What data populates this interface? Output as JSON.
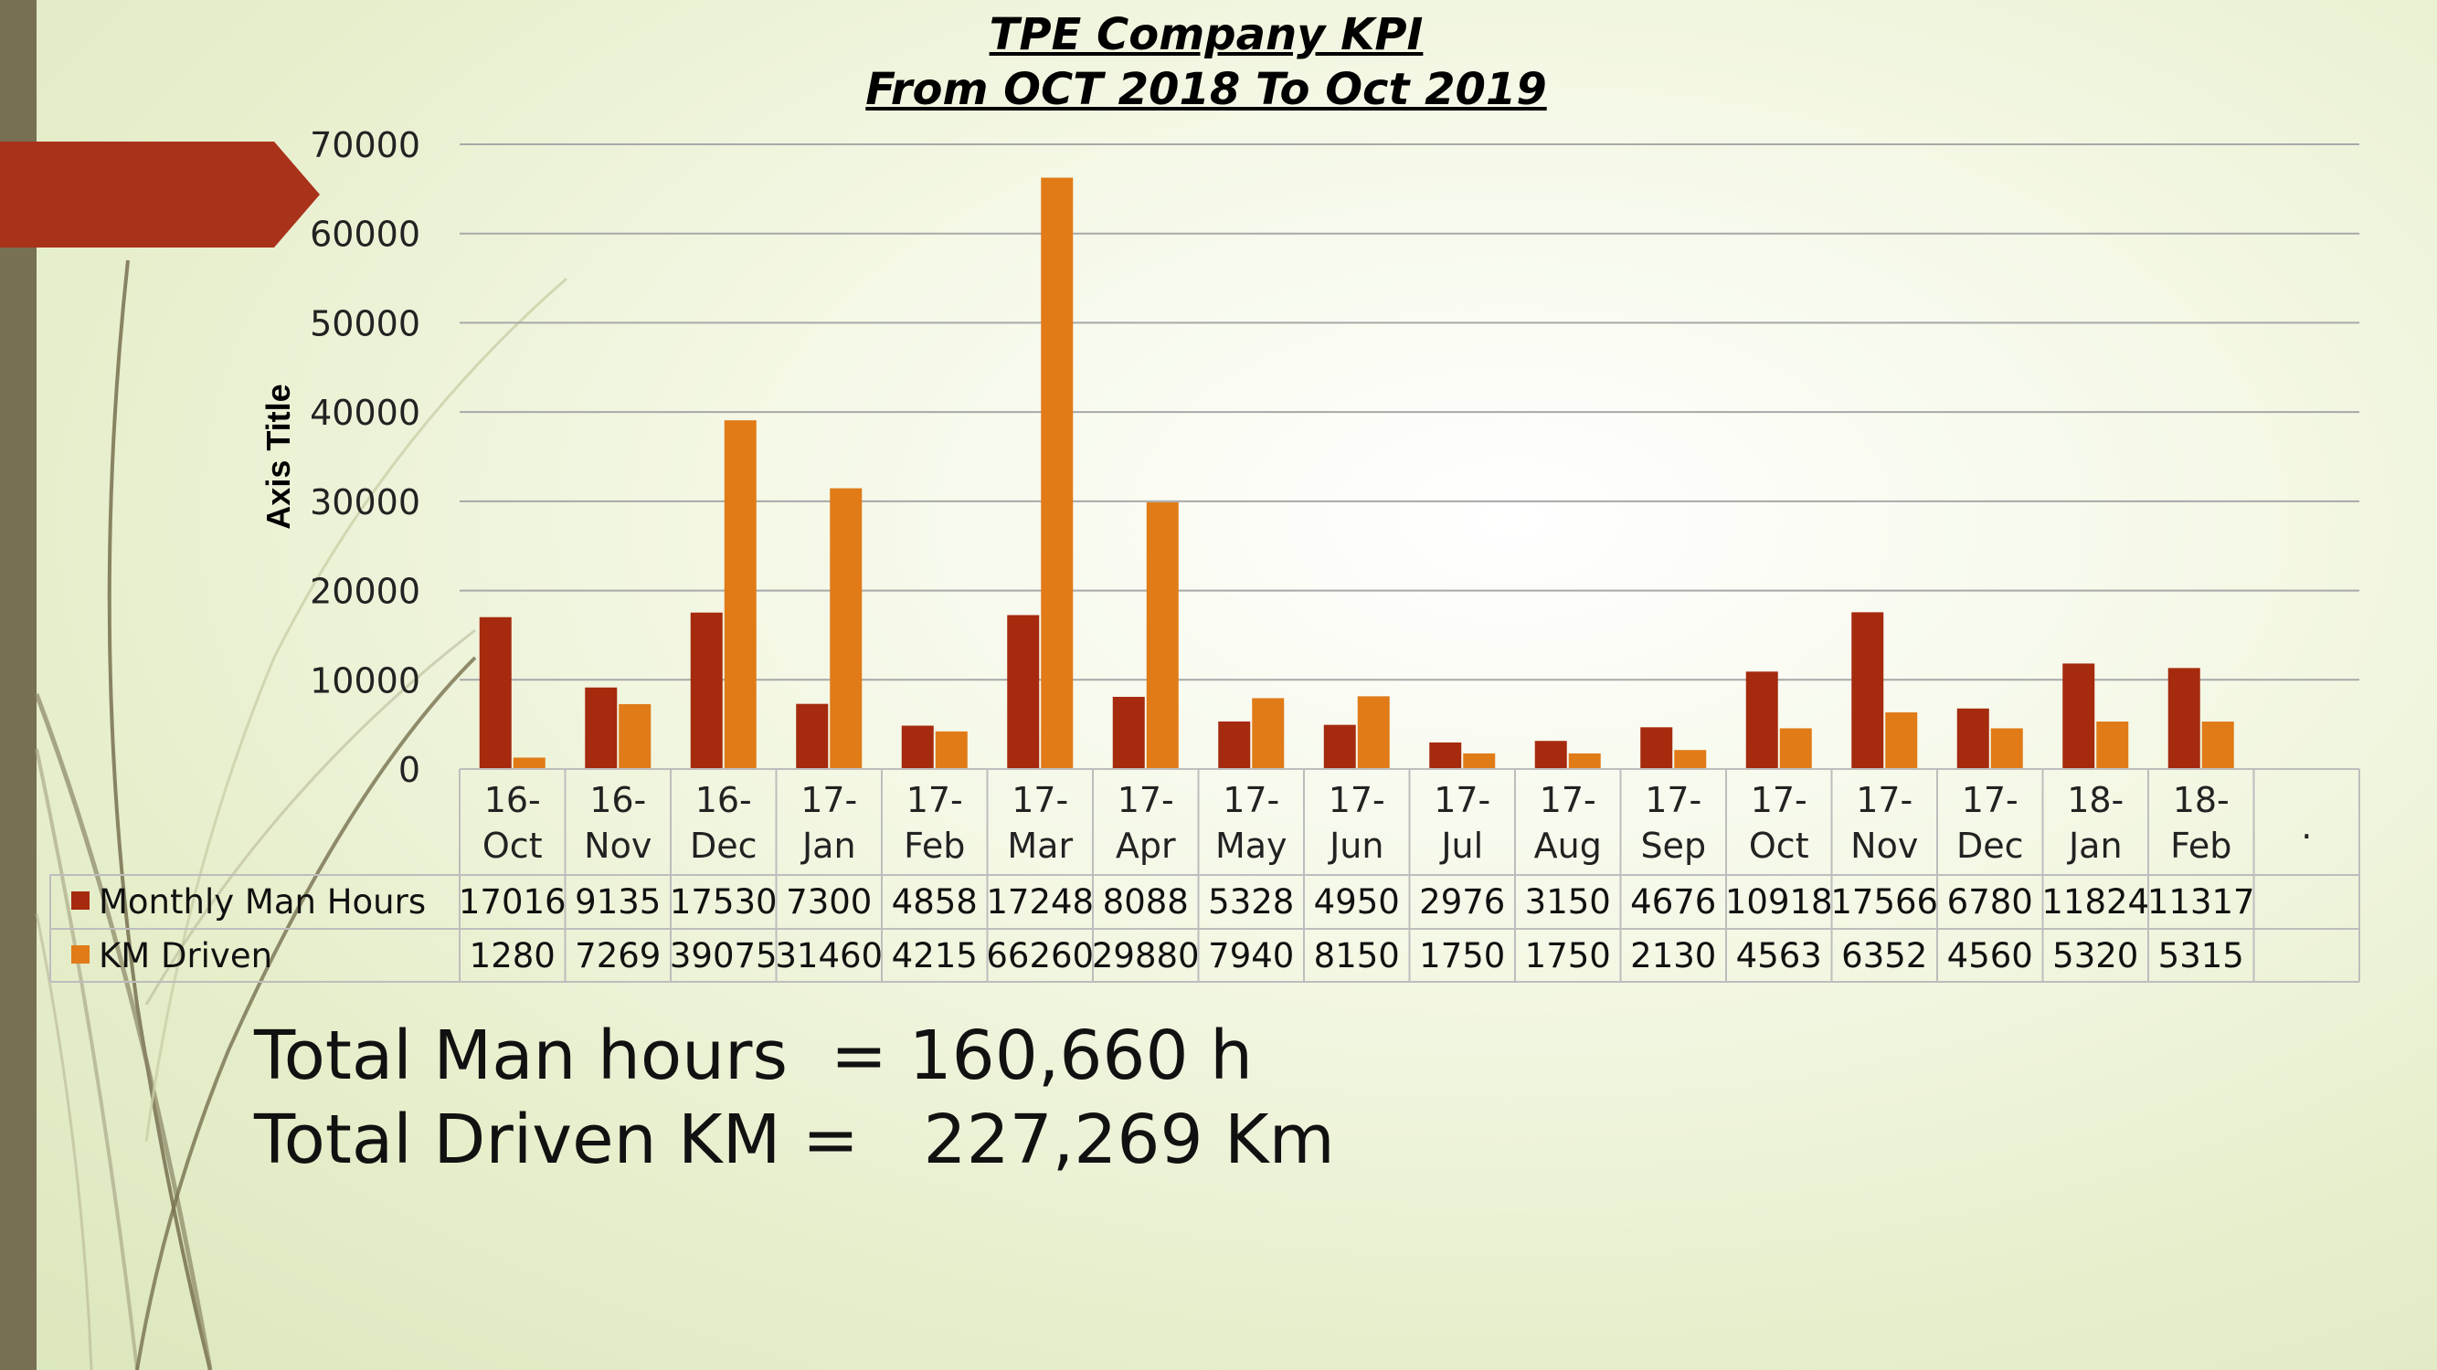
{
  "colors": {
    "man_hours": "#a52a0e",
    "km_driven": "#e07b18",
    "arrow": "#a9321a",
    "side_bar": "#777053"
  },
  "title": {
    "line1": "TPE Company KPI",
    "line2": "From OCT 2018  To Oct   2019"
  },
  "totals": {
    "man_hours": "Total Man hours  = 160,660 h",
    "km": "Total Driven KM =   227,269 Km"
  },
  "chart_data": {
    "type": "bar",
    "title": "TPE Company KPI From OCT 2018  To Oct   2019",
    "ylabel": "Axis Title",
    "xlabel": "",
    "ylim": [
      0,
      70000
    ],
    "yticks": [
      0,
      10000,
      20000,
      30000,
      40000,
      50000,
      60000,
      70000
    ],
    "grid": true,
    "legend": "data table",
    "categories": [
      [
        "16-",
        "Oct"
      ],
      [
        "16-",
        "Nov"
      ],
      [
        "16-",
        "Dec"
      ],
      [
        "17-",
        "Jan"
      ],
      [
        "17-",
        "Feb"
      ],
      [
        "17-",
        "Mar"
      ],
      [
        "17-",
        "Apr"
      ],
      [
        "17-",
        "May"
      ],
      [
        "17-",
        "Jun"
      ],
      [
        "17-",
        "Jul"
      ],
      [
        "17-",
        "Aug"
      ],
      [
        "17-",
        "Sep"
      ],
      [
        "17-",
        "Oct"
      ],
      [
        "17-",
        "Nov"
      ],
      [
        "17-",
        "Dec"
      ],
      [
        "18-",
        "Jan"
      ],
      [
        "18-",
        "Feb"
      ]
    ],
    "extra_category_label": ".",
    "series": [
      {
        "name": "Monthly Man Hours",
        "values": [
          17016,
          9135,
          17530,
          7300,
          4858,
          17248,
          8088,
          5328,
          4950,
          2976,
          3150,
          4676,
          10918,
          17566,
          6780,
          11824,
          11317
        ]
      },
      {
        "name": "KM Driven",
        "values": [
          1280,
          7269,
          39075,
          31460,
          4215,
          66260,
          29880,
          7940,
          8150,
          1750,
          1750,
          2130,
          4563,
          6352,
          4560,
          5320,
          5315
        ]
      }
    ]
  }
}
